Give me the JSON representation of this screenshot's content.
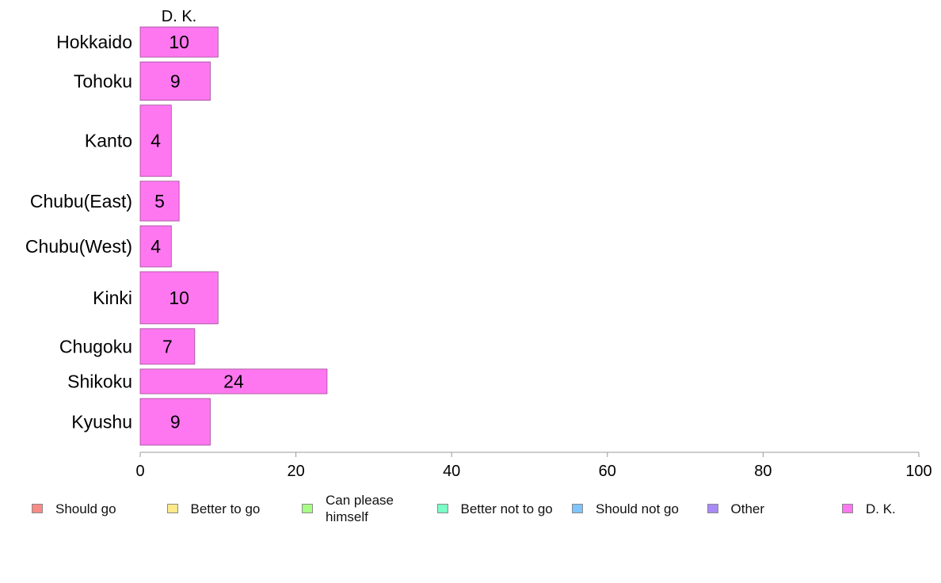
{
  "chart_data": {
    "type": "bar",
    "orientation": "horizontal",
    "title": "D. K.",
    "categories": [
      "Hokkaido",
      "Tohoku",
      "Kanto",
      "Chubu(East)",
      "Chubu(West)",
      "Kinki",
      "Chugoku",
      "Shikoku",
      "Kyushu"
    ],
    "bar_weights": [
      2.2,
      2.8,
      5.2,
      2.9,
      3.0,
      3.8,
      2.6,
      1.8,
      3.4
    ],
    "series": [
      {
        "name": "D. K.",
        "values": [
          10,
          9,
          4,
          5,
          4,
          10,
          7,
          24,
          9
        ],
        "color": "#ff77f0"
      }
    ],
    "data_labels": [
      "10",
      "9",
      "4",
      "5",
      "4",
      "10",
      "7",
      "24",
      "9"
    ],
    "xlim": [
      0,
      100
    ],
    "x_ticks": [
      "0",
      "20",
      "40",
      "60",
      "80",
      "100"
    ],
    "grid": false,
    "legend_position": "bottom",
    "legend": [
      {
        "name": "Should go",
        "color": "#f98a85"
      },
      {
        "name": "Better to go",
        "color": "#ffe88a"
      },
      {
        "name": "Can please himself",
        "color": "#a6ff84"
      },
      {
        "name": "Better not to go",
        "color": "#7cffc6"
      },
      {
        "name": "Should not go",
        "color": "#7ec4ff"
      },
      {
        "name": "Other",
        "color": "#a98af5"
      },
      {
        "name": "D. K.",
        "color": "#ff77f0"
      }
    ]
  }
}
